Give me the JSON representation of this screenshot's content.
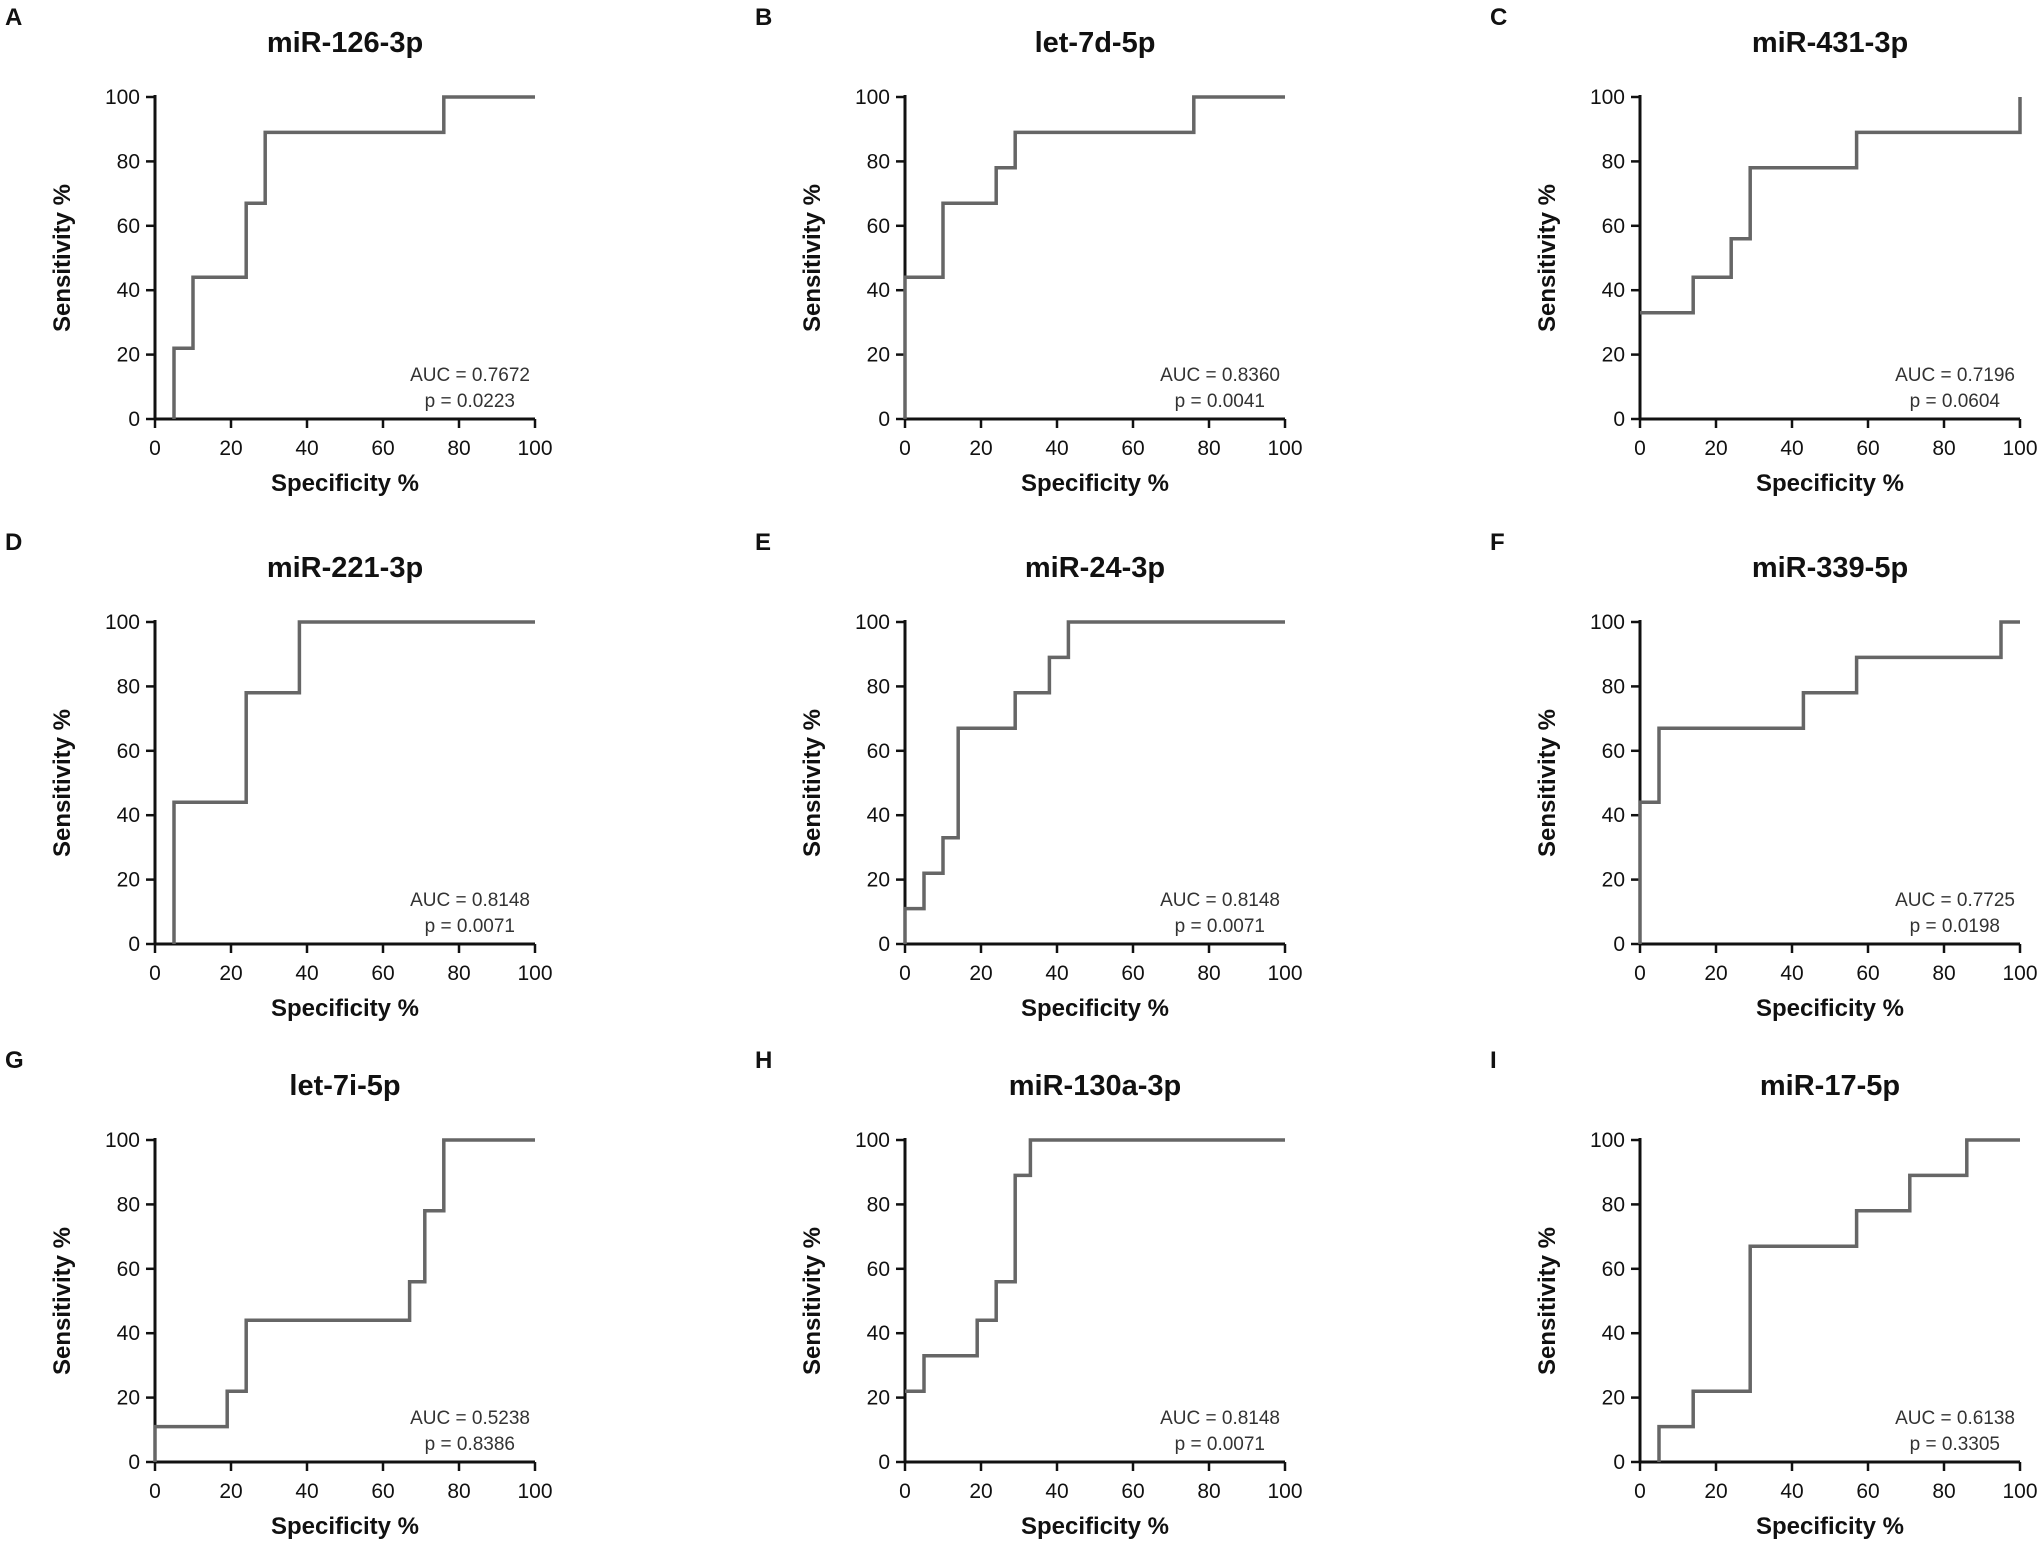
{
  "chart_data": [
    {
      "type": "line",
      "panel": "A",
      "title": "miR-126-3p",
      "xlabel": "Specificity %",
      "ylabel": "Sensitivity %",
      "xlim": [
        0,
        100
      ],
      "ylim": [
        0,
        100
      ],
      "xticks": [
        "0",
        "20",
        "40",
        "60",
        "80",
        "100"
      ],
      "yticks": [
        "0",
        "20",
        "40",
        "60",
        "80",
        "100"
      ],
      "auc": "AUC = 0.7672",
      "p": "p = 0.0223",
      "x": [
        5,
        5,
        10,
        10,
        24,
        24,
        29,
        29,
        76,
        76,
        100
      ],
      "y": [
        0,
        22,
        22,
        44,
        44,
        67,
        67,
        89,
        89,
        100,
        100
      ]
    },
    {
      "type": "line",
      "panel": "B",
      "title": "let-7d-5p",
      "xlabel": "Specificity %",
      "ylabel": "Sensitivity %",
      "xlim": [
        0,
        100
      ],
      "ylim": [
        0,
        100
      ],
      "xticks": [
        "0",
        "20",
        "40",
        "60",
        "80",
        "100"
      ],
      "yticks": [
        "0",
        "20",
        "40",
        "60",
        "80",
        "100"
      ],
      "auc": "AUC = 0.8360",
      "p": "p = 0.0041",
      "x": [
        0,
        0,
        10,
        10,
        24,
        24,
        29,
        29,
        76,
        76,
        100
      ],
      "y": [
        0,
        44,
        44,
        67,
        67,
        78,
        78,
        89,
        89,
        100,
        100
      ]
    },
    {
      "type": "line",
      "panel": "C",
      "title": "miR-431-3p",
      "xlabel": "Specificity %",
      "ylabel": "Sensitivity %",
      "xlim": [
        0,
        100
      ],
      "ylim": [
        0,
        100
      ],
      "xticks": [
        "0",
        "20",
        "40",
        "60",
        "80",
        "100"
      ],
      "yticks": [
        "0",
        "20",
        "40",
        "60",
        "80",
        "100"
      ],
      "auc": "AUC = 0.7196",
      "p": "p = 0.0604",
      "x": [
        0,
        14,
        14,
        24,
        24,
        29,
        29,
        57,
        57,
        100,
        100
      ],
      "y": [
        33,
        33,
        44,
        44,
        56,
        56,
        78,
        78,
        89,
        89,
        100
      ]
    },
    {
      "type": "line",
      "panel": "D",
      "title": "miR-221-3p",
      "xlabel": "Specificity %",
      "ylabel": "Sensitivity %",
      "xlim": [
        0,
        100
      ],
      "ylim": [
        0,
        100
      ],
      "xticks": [
        "0",
        "20",
        "40",
        "60",
        "80",
        "100"
      ],
      "yticks": [
        "0",
        "20",
        "40",
        "60",
        "80",
        "100"
      ],
      "auc": "AUC = 0.8148",
      "p": "p = 0.0071",
      "x": [
        5,
        5,
        24,
        24,
        38,
        38,
        100
      ],
      "y": [
        0,
        44,
        44,
        78,
        78,
        100,
        100
      ]
    },
    {
      "type": "line",
      "panel": "E",
      "title": "miR-24-3p",
      "xlabel": "Specificity %",
      "ylabel": "Sensitivity %",
      "xlim": [
        0,
        100
      ],
      "ylim": [
        0,
        100
      ],
      "xticks": [
        "0",
        "20",
        "40",
        "60",
        "80",
        "100"
      ],
      "yticks": [
        "0",
        "20",
        "40",
        "60",
        "80",
        "100"
      ],
      "auc": "AUC = 0.8148",
      "p": "p = 0.0071",
      "x": [
        0,
        0,
        5,
        5,
        10,
        10,
        14,
        14,
        29,
        29,
        38,
        38,
        43,
        43,
        100
      ],
      "y": [
        0,
        11,
        11,
        22,
        22,
        33,
        33,
        67,
        67,
        78,
        78,
        89,
        89,
        100,
        100
      ]
    },
    {
      "type": "line",
      "panel": "F",
      "title": "miR-339-5p",
      "xlabel": "Specificity %",
      "ylabel": "Sensitivity %",
      "xlim": [
        0,
        100
      ],
      "ylim": [
        0,
        100
      ],
      "xticks": [
        "0",
        "20",
        "40",
        "60",
        "80",
        "100"
      ],
      "yticks": [
        "0",
        "20",
        "40",
        "60",
        "80",
        "100"
      ],
      "auc": "AUC = 0.7725",
      "p": "p = 0.0198",
      "x": [
        0,
        0,
        5,
        5,
        43,
        43,
        57,
        57,
        95,
        95,
        100
      ],
      "y": [
        0,
        44,
        44,
        67,
        67,
        78,
        78,
        89,
        89,
        100,
        100
      ]
    },
    {
      "type": "line",
      "panel": "G",
      "title": "let-7i-5p",
      "xlabel": "Specificity %",
      "ylabel": "Sensitivity %",
      "xlim": [
        0,
        100
      ],
      "ylim": [
        0,
        100
      ],
      "xticks": [
        "0",
        "20",
        "40",
        "60",
        "80",
        "100"
      ],
      "yticks": [
        "0",
        "20",
        "40",
        "60",
        "80",
        "100"
      ],
      "auc": "AUC = 0.5238",
      "p": "p = 0.8386",
      "x": [
        0,
        0,
        19,
        19,
        24,
        24,
        67,
        67,
        71,
        71,
        76,
        76,
        100
      ],
      "y": [
        0,
        11,
        11,
        22,
        22,
        44,
        44,
        56,
        56,
        78,
        78,
        100,
        100
      ]
    },
    {
      "type": "line",
      "panel": "H",
      "title": "miR-130a-3p",
      "xlabel": "Specificity %",
      "ylabel": "Sensitivity %",
      "xlim": [
        0,
        100
      ],
      "ylim": [
        0,
        100
      ],
      "xticks": [
        "0",
        "20",
        "40",
        "60",
        "80",
        "100"
      ],
      "yticks": [
        "0",
        "20",
        "40",
        "60",
        "80",
        "100"
      ],
      "auc": "AUC = 0.8148",
      "p": "p = 0.0071",
      "x": [
        0,
        5,
        5,
        19,
        19,
        24,
        24,
        29,
        29,
        33,
        33,
        100
      ],
      "y": [
        22,
        22,
        33,
        33,
        44,
        44,
        56,
        56,
        89,
        89,
        100,
        100
      ]
    },
    {
      "type": "line",
      "panel": "I",
      "title": "miR-17-5p",
      "xlabel": "Specificity %",
      "ylabel": "Sensitivity %",
      "xlim": [
        0,
        100
      ],
      "ylim": [
        0,
        100
      ],
      "xticks": [
        "0",
        "20",
        "40",
        "60",
        "80",
        "100"
      ],
      "yticks": [
        "0",
        "20",
        "40",
        "60",
        "80",
        "100"
      ],
      "auc": "AUC = 0.6138",
      "p": "p = 0.3305",
      "x": [
        5,
        5,
        14,
        14,
        29,
        29,
        57,
        57,
        71,
        71,
        86,
        86,
        100
      ],
      "y": [
        0,
        11,
        11,
        22,
        22,
        67,
        67,
        78,
        78,
        89,
        89,
        100,
        100
      ]
    }
  ]
}
